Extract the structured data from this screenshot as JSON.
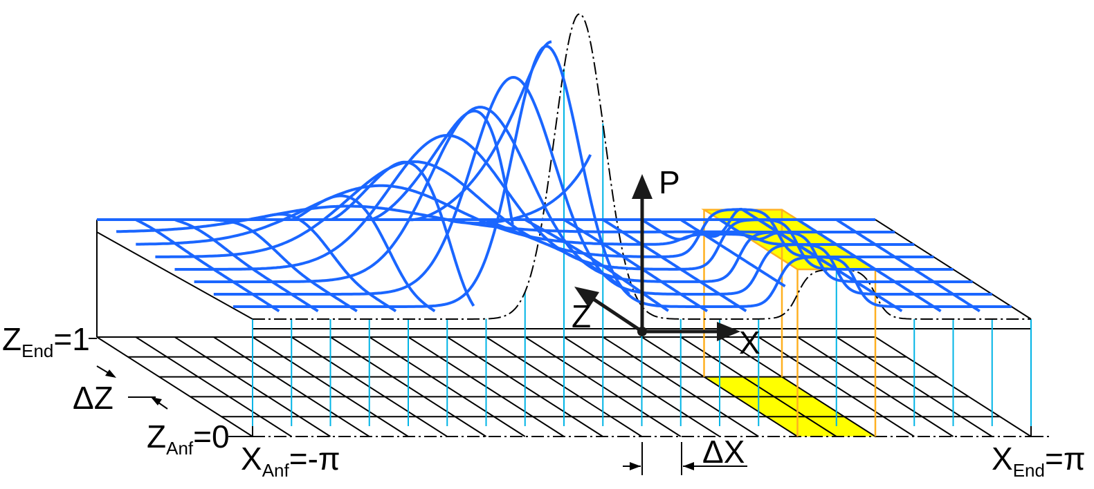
{
  "labels": {
    "z_end": {
      "symbol": "Z",
      "subscript": "End",
      "value": "=1"
    },
    "delta_z": "ΔZ",
    "z_anf": {
      "symbol": "Z",
      "subscript": "Anf",
      "value": "=0"
    },
    "x_anf": {
      "symbol": "X",
      "subscript": "Anf",
      "value": "=-π"
    },
    "delta_x": "ΔX",
    "x_end": {
      "symbol": "X",
      "subscript": "End",
      "value": "=π"
    },
    "axis_p": "P",
    "axis_z": "Z",
    "axis_x": "X"
  }
}
